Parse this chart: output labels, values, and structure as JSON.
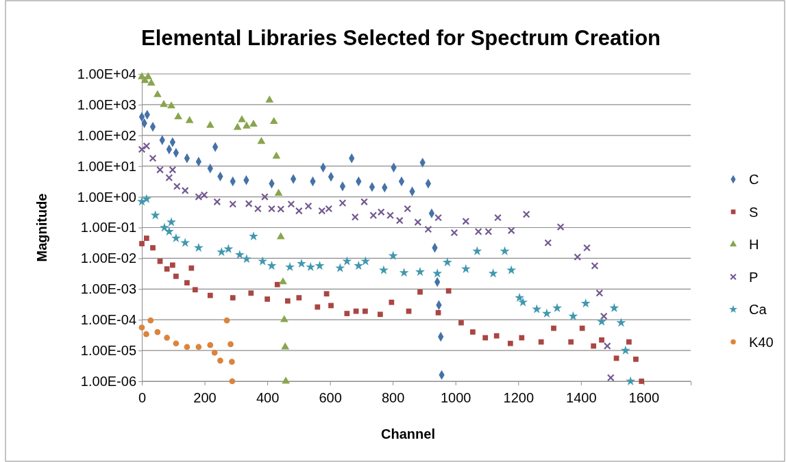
{
  "chart_data": {
    "type": "scatter",
    "title": "Elemental Libraries Selected for Spectrum Creation",
    "xlabel": "Channel",
    "ylabel": "Magnitude",
    "xlim": [
      0,
      1750
    ],
    "xticks": [
      0,
      200,
      400,
      600,
      800,
      1000,
      1200,
      1400,
      1600
    ],
    "ylim": [
      1e-06,
      10000
    ],
    "log": "y",
    "yticks": [
      {
        "value": 10000,
        "label": "1.00E+04"
      },
      {
        "value": 1000,
        "label": "1.00E+03"
      },
      {
        "value": 100,
        "label": "1.00E+02"
      },
      {
        "value": 10,
        "label": "1.00E+01"
      },
      {
        "value": 1,
        "label": "1.00E+00"
      },
      {
        "value": 0.1,
        "label": "1.00E-01"
      },
      {
        "value": 0.01,
        "label": "1.00E-02"
      },
      {
        "value": 0.001,
        "label": "1.00E-03"
      },
      {
        "value": 0.0001,
        "label": "1.00E-04"
      },
      {
        "value": 1e-05,
        "label": "1.00E-05"
      },
      {
        "value": 1e-06,
        "label": "1.00E-06"
      }
    ],
    "grid": "y",
    "legend": "right",
    "series": [
      {
        "name": "C",
        "color": "#4572a7",
        "marker": "diamond",
        "x": [
          0,
          8,
          17,
          35,
          65,
          87,
          98,
          109,
          144,
          181,
          218,
          234,
          250,
          290,
          333,
          414,
          483,
          545,
          578,
          603,
          640,
          669,
          691,
          734,
          774,
          803,
          828,
          862,
          895,
          913,
          924,
          934,
          942,
          947,
          953,
          956
        ],
        "values": [
          400,
          250,
          470,
          190,
          70,
          35,
          60,
          27,
          18,
          14,
          8.4,
          42,
          4.6,
          3.2,
          3.5,
          2.7,
          3.8,
          3.2,
          9,
          4.5,
          2.2,
          18,
          3.2,
          2.1,
          2,
          9,
          3.2,
          1.5,
          13,
          2.7,
          0.29,
          0.022,
          0.0017,
          0.0003,
          2.8e-05,
          1.6e-06
        ]
      },
      {
        "name": "S",
        "color": "#aa4643",
        "marker": "square",
        "x": [
          0,
          15,
          35,
          58,
          80,
          98,
          109,
          144,
          158,
          170,
          218,
          290,
          348,
          400,
          432,
          465,
          501,
          560,
          589,
          603,
          654,
          683,
          712,
          760,
          796,
          851,
          887,
          945,
          978,
          1018,
          1055,
          1095,
          1131,
          1175,
          1211,
          1273,
          1313,
          1368,
          1404,
          1440,
          1466,
          1513,
          1553,
          1575,
          1593
        ],
        "values": [
          0.03,
          0.045,
          0.022,
          0.008,
          0.0045,
          0.006,
          0.0026,
          0.0016,
          0.0048,
          0.00095,
          0.00062,
          0.00052,
          0.00074,
          0.00047,
          0.0014,
          0.00041,
          0.00052,
          0.00026,
          0.0007,
          0.00029,
          0.00016,
          0.00019,
          0.00019,
          0.00015,
          0.00037,
          0.00019,
          0.0008,
          0.00017,
          0.00087,
          8e-05,
          4e-05,
          2.6e-05,
          3e-05,
          1.7e-05,
          2.6e-05,
          1.9e-05,
          5.3e-05,
          1.9e-05,
          5.3e-05,
          1.4e-05,
          2.2e-05,
          5.6e-06,
          1.9e-05,
          5.2e-06,
          1e-06
        ]
      },
      {
        "name": "H",
        "color": "#89a54e",
        "marker": "triangle",
        "x": [
          0,
          10,
          20,
          30,
          50,
          70,
          94,
          116,
          152,
          218,
          305,
          319,
          334,
          356,
          381,
          407,
          421,
          429,
          436,
          443,
          450,
          454,
          457,
          459
        ],
        "values": [
          8000,
          6000,
          8000,
          5000,
          2100,
          1000,
          900,
          400,
          300,
          210,
          180,
          320,
          200,
          230,
          63,
          1400,
          280,
          21,
          1.3,
          0.05,
          0.0017,
          0.0001,
          1.3e-05,
          1e-06
        ]
      },
      {
        "name": "P",
        "color": "#71588f",
        "marker": "cross",
        "x": [
          0,
          15,
          35,
          58,
          87,
          98,
          112,
          138,
          181,
          199,
          240,
          290,
          341,
          370,
          392,
          414,
          443,
          476,
          501,
          531,
          574,
          596,
          640,
          680,
          709,
          738,
          763,
          792,
          822,
          847,
          880,
          913,
          945,
          996,
          1033,
          1073,
          1105,
          1135,
          1178,
          1226,
          1295,
          1335,
          1389,
          1419,
          1444,
          1459,
          1473,
          1484,
          1495
        ],
        "values": [
          35,
          45,
          18,
          7.6,
          4.2,
          7.6,
          2.2,
          1.6,
          1,
          1.15,
          0.69,
          0.58,
          0.6,
          0.41,
          1,
          0.41,
          0.4,
          0.58,
          0.35,
          0.5,
          0.35,
          0.41,
          0.63,
          0.22,
          0.69,
          0.25,
          0.32,
          0.25,
          0.17,
          0.41,
          0.15,
          0.088,
          0.21,
          0.068,
          0.16,
          0.074,
          0.074,
          0.21,
          0.08,
          0.27,
          0.032,
          0.105,
          0.011,
          0.022,
          0.0057,
          0.00074,
          0.00013,
          1.4e-05,
          1.3e-06
        ]
      },
      {
        "name": "Ca",
        "color": "#4198af",
        "marker": "star",
        "x": [
          0,
          15,
          43,
          72,
          87,
          94,
          109,
          138,
          181,
          254,
          276,
          312,
          334,
          356,
          385,
          414,
          472,
          509,
          538,
          567,
          632,
          654,
          691,
          713,
          771,
          801,
          836,
          887,
          942,
          974,
          1033,
          1069,
          1120,
          1157,
          1178,
          1204,
          1215,
          1259,
          1291,
          1324,
          1375,
          1415,
          1466,
          1506,
          1528,
          1542,
          1558
        ],
        "values": [
          0.7,
          0.85,
          0.25,
          0.1,
          0.074,
          0.15,
          0.045,
          0.032,
          0.022,
          0.016,
          0.02,
          0.013,
          0.0095,
          0.052,
          0.008,
          0.0057,
          0.0052,
          0.0067,
          0.0052,
          0.0057,
          0.0048,
          0.008,
          0.0057,
          0.008,
          0.0041,
          0.012,
          0.0034,
          0.0036,
          0.0032,
          0.0074,
          0.0045,
          0.017,
          0.0032,
          0.017,
          0.0041,
          0.00052,
          0.00037,
          0.00022,
          0.00016,
          0.00024,
          0.00013,
          0.00034,
          8.7e-05,
          0.00024,
          8e-05,
          1e-05,
          1e-06
        ]
      },
      {
        "name": "K40",
        "color": "#db843d",
        "marker": "circle",
        "x": [
          0,
          14,
          28,
          50,
          80,
          109,
          144,
          181,
          218,
          232,
          250,
          271,
          283,
          287,
          288
        ],
        "values": [
          5.6e-05,
          3.4e-05,
          9.5e-05,
          4e-05,
          2.6e-05,
          1.7e-05,
          1.3e-05,
          1.3e-05,
          1.5e-05,
          8.5e-06,
          4.7e-06,
          9.5e-05,
          1.6e-05,
          4.3e-06,
          1e-06
        ]
      }
    ]
  }
}
